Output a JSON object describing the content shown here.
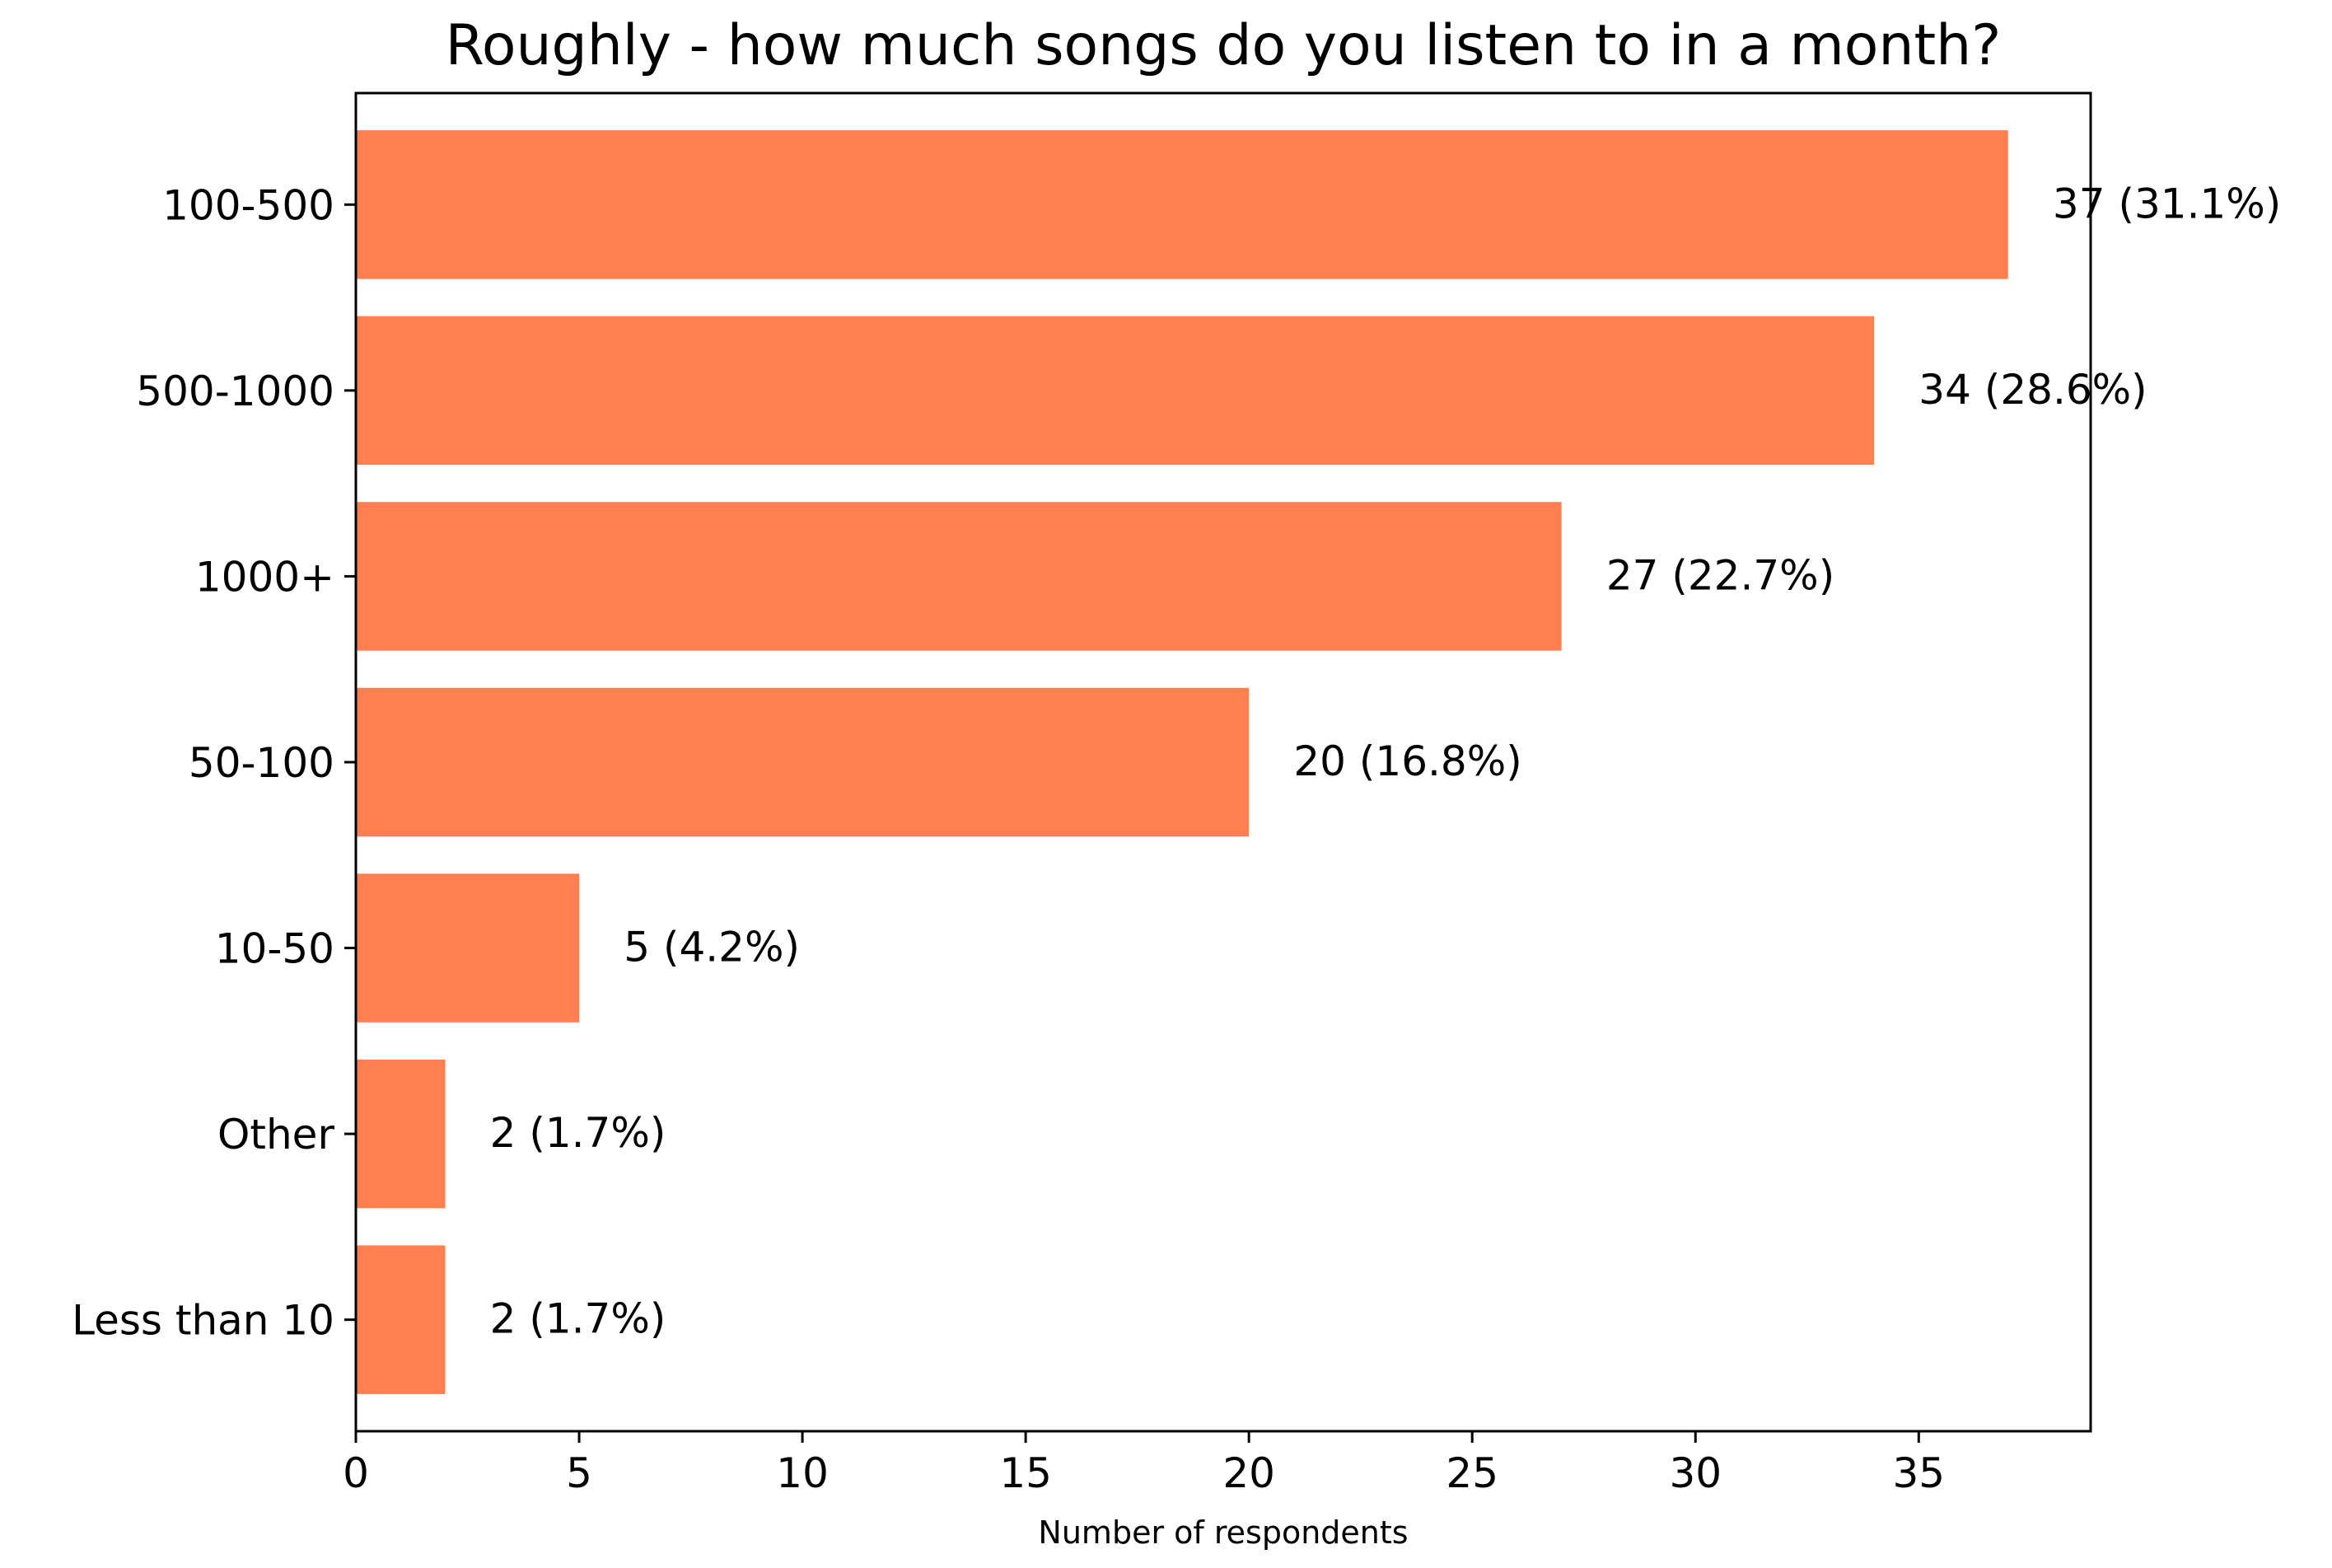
{
  "chart_data": {
    "type": "bar",
    "orientation": "horizontal",
    "title": "Roughly - how much songs do you listen to in a month?",
    "xlabel": "Number of respondents",
    "ylabel": "",
    "categories": [
      "100-500",
      "500-1000",
      "1000+",
      "50-100",
      "10-50",
      "Other",
      "Less than 10"
    ],
    "values": [
      37,
      34,
      27,
      20,
      5,
      2,
      2
    ],
    "data_labels": [
      "37 (31.1%)",
      "34 (28.6%)",
      "27 (22.7%)",
      "20 (16.8%)",
      "5 (4.2%)",
      "2 (1.7%)",
      "2 (1.7%)"
    ],
    "xlim": [
      0,
      38.85
    ],
    "xticks": [
      0,
      5,
      10,
      15,
      20,
      25,
      30,
      35
    ],
    "xtick_labels": [
      "0",
      "5",
      "10",
      "15",
      "20",
      "25",
      "30",
      "35"
    ],
    "bar_color": "#ff7f50",
    "grid": false,
    "legend": "none"
  }
}
